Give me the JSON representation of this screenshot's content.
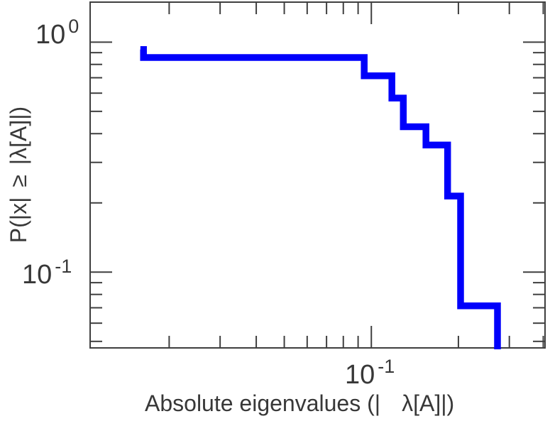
{
  "figure": {
    "background": "#ffffff",
    "axis_color": "#3f3f3f",
    "text_color": "#383838"
  },
  "chart_data": {
    "type": "line",
    "subtype": "step-survival-function",
    "title": "",
    "xlabel_parts": {
      "part1": "Absolute eigenvalues (|",
      "part2": "λ[A]|)"
    },
    "xlabel_full": "Absolute eigenvalues (| λ[A]|)",
    "ylabel": "P(|x| ≥ |λ[A]|)",
    "xscale": "log",
    "yscale": "log",
    "xlim": [
      0.01066,
      0.3986
    ],
    "ylim": [
      0.04684,
      1.4923
    ],
    "grid": "off",
    "legend": "none",
    "x_ticks": {
      "major": [
        0.1
      ],
      "minor": [
        0.02,
        0.03,
        0.04,
        0.05,
        0.06,
        0.07,
        0.08,
        0.09,
        0.2,
        0.3,
        0.4
      ]
    },
    "y_ticks": {
      "major": [
        1.0,
        0.1
      ],
      "minor": [
        0.9,
        0.8,
        0.7,
        0.6,
        0.5,
        0.4,
        0.3,
        0.2,
        0.09,
        0.08,
        0.07,
        0.06,
        0.05
      ]
    },
    "x_tick_labels": [
      {
        "base": "10",
        "exp": "-1"
      }
    ],
    "y_tick_labels": [
      {
        "base": "10",
        "exp": "0"
      },
      {
        "base": "10",
        "exp": "-1"
      }
    ],
    "series": [
      {
        "name": "eigenvalue-survival-curve",
        "color": "#0000fb",
        "line_width": 9.5,
        "step_vertices": [
          [
            0.0159,
            0.9286
          ],
          [
            0.0163,
            0.9286
          ],
          [
            0.0163,
            0.8571
          ],
          [
            0.0945,
            0.8571
          ],
          [
            0.0945,
            0.7143
          ],
          [
            0.1178,
            0.7143
          ],
          [
            0.1178,
            0.5714
          ],
          [
            0.129,
            0.5714
          ],
          [
            0.129,
            0.4286
          ],
          [
            0.1545,
            0.4286
          ],
          [
            0.1545,
            0.3571
          ],
          [
            0.1835,
            0.3571
          ],
          [
            0.1835,
            0.2143
          ],
          [
            0.2035,
            0.2143
          ],
          [
            0.2035,
            0.0714
          ],
          [
            0.273,
            0.0714
          ],
          [
            0.273,
            0.044
          ]
        ]
      }
    ],
    "survival_levels": [
      0.9286,
      0.8571,
      0.7143,
      0.5714,
      0.4286,
      0.3571,
      0.2143,
      0.0714,
      0.0
    ],
    "eigenvalues_estimated": [
      0.0159,
      0.0163,
      0.0945,
      0.0945,
      0.1178,
      0.1178,
      0.129,
      0.129,
      0.1545,
      0.1835,
      0.1835,
      0.2035,
      0.2035,
      0.273
    ]
  }
}
